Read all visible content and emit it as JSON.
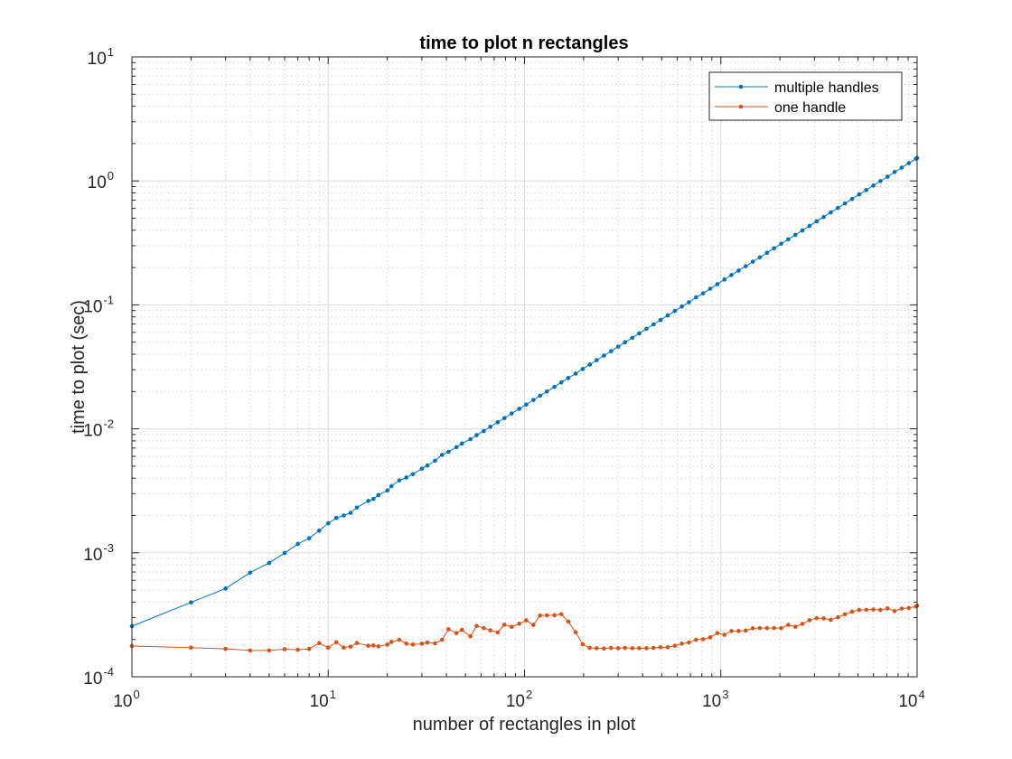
{
  "chart_data": {
    "type": "line",
    "title": "time to plot n rectangles",
    "xlabel": "number of rectangles in plot",
    "ylabel": "time to plot (sec)",
    "xscale": "log",
    "yscale": "log",
    "xlim": [
      1,
      10000
    ],
    "ylim": [
      0.0001,
      10
    ],
    "grid": "major and minor",
    "legend_position": "top-right",
    "x_ticks": [
      {
        "base": "10",
        "exp": "0"
      },
      {
        "base": "10",
        "exp": "1"
      },
      {
        "base": "10",
        "exp": "2"
      },
      {
        "base": "10",
        "exp": "3"
      },
      {
        "base": "10",
        "exp": "4"
      }
    ],
    "y_ticks": [
      {
        "base": "10",
        "exp": "-4"
      },
      {
        "base": "10",
        "exp": "-3"
      },
      {
        "base": "10",
        "exp": "-2"
      },
      {
        "base": "10",
        "exp": "-1"
      },
      {
        "base": "10",
        "exp": "0"
      },
      {
        "base": "10",
        "exp": "1"
      }
    ],
    "series": [
      {
        "name": "multiple handles",
        "color": "#0072BD",
        "x": [
          1,
          2,
          3,
          4,
          5,
          6,
          7,
          8,
          9,
          10,
          11,
          12,
          13,
          14,
          16,
          17,
          18,
          20,
          21,
          23,
          25,
          27,
          30,
          32,
          35,
          38,
          41,
          45,
          48,
          53,
          57,
          62,
          67,
          73,
          79,
          86,
          94,
          102,
          111,
          120,
          130,
          142,
          154,
          167,
          182,
          198,
          215,
          233,
          254,
          276,
          300,
          325,
          354,
          384,
          418,
          454,
          493,
          536,
          583,
          633,
          688,
          748,
          812,
          883,
          960,
          1043,
          1133,
          1232,
          1339,
          1455,
          1581,
          1718,
          1867,
          2029,
          2205,
          2397,
          2604,
          2830,
          3076,
          3343,
          3633,
          3948,
          4290,
          4662,
          5067,
          5506,
          5984,
          6503,
          7067,
          7680,
          8346,
          9069,
          9856,
          10000
        ],
        "y": [
          0.000256,
          0.000398,
          0.000515,
          0.000692,
          0.000829,
          0.000996,
          0.00118,
          0.00131,
          0.00151,
          0.00173,
          0.00191,
          0.002,
          0.0021,
          0.00232,
          0.00262,
          0.00272,
          0.00292,
          0.00318,
          0.00345,
          0.00384,
          0.00405,
          0.00431,
          0.00477,
          0.00506,
          0.00553,
          0.00616,
          0.00653,
          0.00712,
          0.00761,
          0.00824,
          0.0089,
          0.00961,
          0.0104,
          0.0113,
          0.0122,
          0.0133,
          0.0145,
          0.0157,
          0.0171,
          0.0185,
          0.02,
          0.0218,
          0.0237,
          0.0257,
          0.0279,
          0.0304,
          0.033,
          0.0358,
          0.039,
          0.0423,
          0.046,
          0.0499,
          0.0542,
          0.0589,
          0.0641,
          0.0696,
          0.0756,
          0.0822,
          0.0893,
          0.097,
          0.105,
          0.115,
          0.124,
          0.135,
          0.147,
          0.16,
          0.174,
          0.189,
          0.205,
          0.223,
          0.242,
          0.263,
          0.286,
          0.311,
          0.338,
          0.367,
          0.399,
          0.434,
          0.472,
          0.512,
          0.557,
          0.605,
          0.658,
          0.715,
          0.777,
          0.844,
          0.917,
          0.997,
          1.08,
          1.18,
          1.28,
          1.39,
          1.51,
          1.53
        ]
      },
      {
        "name": "one handle",
        "color": "#D95319",
        "x": [
          1,
          2,
          3,
          4,
          5,
          6,
          7,
          8,
          9,
          10,
          11,
          12,
          13,
          14,
          16,
          17,
          18,
          20,
          21,
          23,
          25,
          27,
          30,
          32,
          35,
          38,
          41,
          45,
          48,
          53,
          57,
          62,
          67,
          73,
          79,
          86,
          94,
          102,
          111,
          120,
          130,
          142,
          154,
          167,
          182,
          198,
          215,
          233,
          254,
          276,
          300,
          325,
          354,
          384,
          418,
          454,
          493,
          536,
          583,
          633,
          688,
          748,
          812,
          883,
          960,
          1043,
          1133,
          1232,
          1339,
          1455,
          1581,
          1718,
          1867,
          2029,
          2205,
          2397,
          2604,
          2830,
          3076,
          3343,
          3633,
          3948,
          4290,
          4662,
          5067,
          5506,
          5984,
          6503,
          7067,
          7680,
          8346,
          9069,
          9856,
          10000
        ],
        "y": [
          0.000177,
          0.000172,
          0.000168,
          0.000163,
          0.000163,
          0.000167,
          0.000165,
          0.000168,
          0.000187,
          0.000172,
          0.00019,
          0.000172,
          0.000175,
          0.000187,
          0.000178,
          0.000179,
          0.000176,
          0.000182,
          0.000191,
          0.000199,
          0.000185,
          0.000182,
          0.000185,
          0.000189,
          0.000186,
          0.000199,
          0.000242,
          0.000225,
          0.000239,
          0.000212,
          0.000257,
          0.000247,
          0.000237,
          0.000228,
          0.000263,
          0.000253,
          0.000268,
          0.000285,
          0.000262,
          0.000312,
          0.000313,
          0.000314,
          0.00032,
          0.000279,
          0.000229,
          0.000183,
          0.000171,
          0.00017,
          0.000169,
          0.000171,
          0.00017,
          0.000171,
          0.00017,
          0.00017,
          0.00017,
          0.000171,
          0.000173,
          0.000173,
          0.000178,
          0.000185,
          0.000189,
          0.000199,
          0.000201,
          0.000208,
          0.000225,
          0.000218,
          0.000234,
          0.000234,
          0.000236,
          0.000246,
          0.000247,
          0.000247,
          0.000247,
          0.000247,
          0.000262,
          0.000253,
          0.000267,
          0.000286,
          0.000297,
          0.000296,
          0.000288,
          0.000302,
          0.000319,
          0.000335,
          0.000346,
          0.000347,
          0.000349,
          0.000346,
          0.000356,
          0.000339,
          0.000355,
          0.000359,
          0.000369,
          0.000374
        ]
      }
    ]
  }
}
